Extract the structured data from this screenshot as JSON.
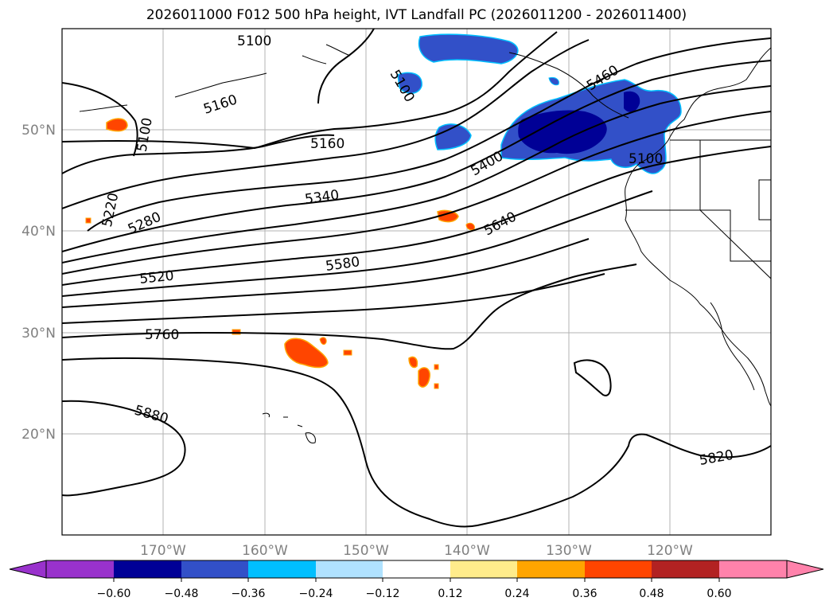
{
  "title": "2026011000 F012 500 hPa height, IVT Landfall PC (2026011200 - 2026011400)",
  "map": {
    "longitude_labels": [
      "170°W",
      "160°W",
      "150°W",
      "140°W",
      "130°W",
      "120°W"
    ],
    "latitude_labels": [
      "50°N",
      "40°N",
      "30°N",
      "20°N"
    ],
    "height_contours_gpm": [
      "5100",
      "5100",
      "5100",
      "5100",
      "5160",
      "5160",
      "5220",
      "5280",
      "5340",
      "5400",
      "5460",
      "5520",
      "5580",
      "5640",
      "5760",
      "5820",
      "5880"
    ],
    "gridlines": true
  },
  "colorbar": {
    "ticks": [
      "−0.60",
      "−0.48",
      "−0.36",
      "−0.24",
      "−0.12",
      "0.12",
      "0.24",
      "0.36",
      "0.48",
      "0.60"
    ],
    "colors": [
      "#9932cc",
      "#000096",
      "#3250c8",
      "#00bfff",
      "#b0e2ff",
      "#ffffff",
      "#ffec8b",
      "#ffa500",
      "#ff4500",
      "#b22222",
      "#ff82ab"
    ],
    "extend": "both"
  }
}
